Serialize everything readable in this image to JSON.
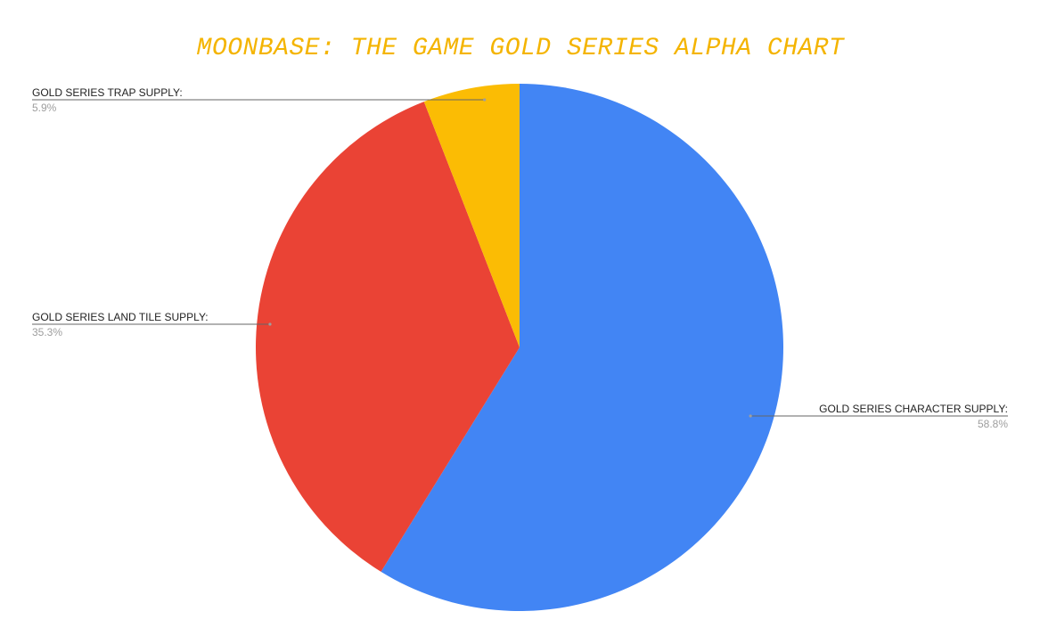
{
  "chart_data": {
    "type": "pie",
    "title": "MOONBASE: THE GAME GOLD SERIES ALPHA CHART",
    "title_color": "#f4b400",
    "slices": [
      {
        "label": "GOLD SERIES CHARACTER SUPPLY:",
        "value": 58.8,
        "value_label": "58.8%",
        "color": "#4285f4"
      },
      {
        "label": "GOLD SERIES LAND TILE SUPPLY:",
        "value": 35.3,
        "value_label": "35.3%",
        "color": "#ea4335"
      },
      {
        "label": "GOLD SERIES TRAP SUPPLY:",
        "value": 5.9,
        "value_label": "5.9%",
        "color": "#fbbc04"
      }
    ],
    "start_angle": "12 o'clock",
    "direction": "clockwise",
    "legend": "none (labels placed beside slices)"
  }
}
